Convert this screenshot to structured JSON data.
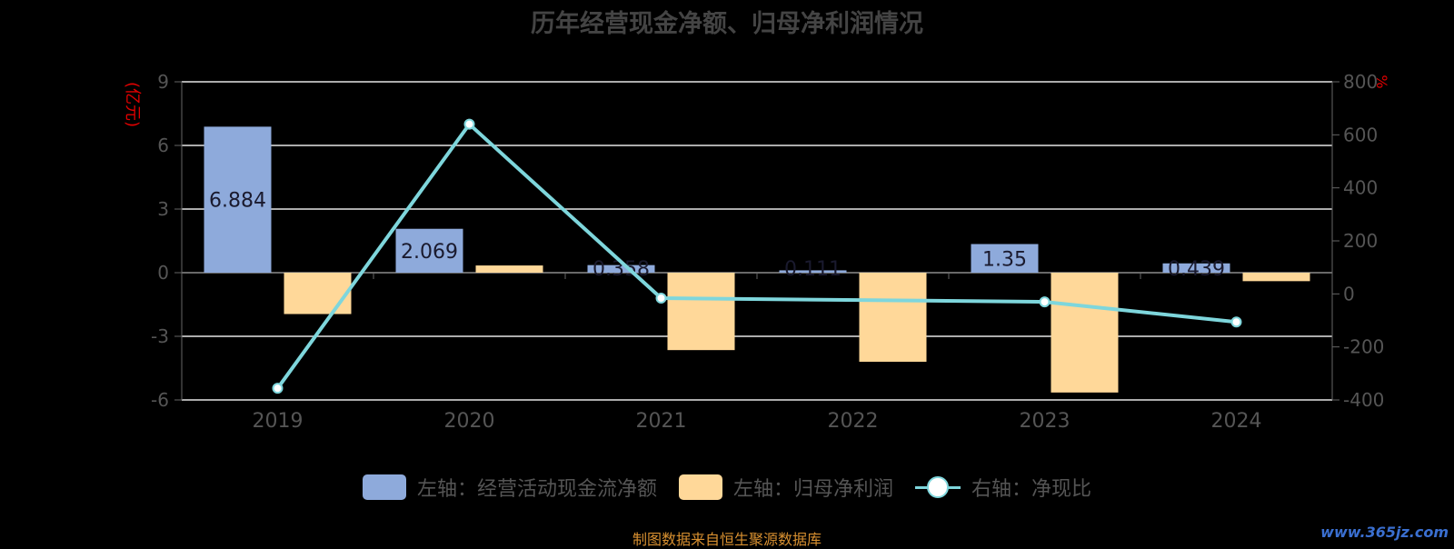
{
  "chart_data": {
    "type": "bar",
    "title": "历年经营现金净额、归母净利润情况",
    "categories": [
      "2019",
      "2020",
      "2021",
      "2022",
      "2023",
      "2024"
    ],
    "series": [
      {
        "name": "左轴：经营活动现金流净额",
        "axis": "left",
        "type": "bar",
        "color": "#8eaadb",
        "values": [
          6.884,
          2.069,
          0.358,
          0.111,
          1.35,
          0.439
        ],
        "labels": [
          "6.884",
          "2.069",
          "0.358",
          "0.111",
          "1.35",
          "0.439"
        ]
      },
      {
        "name": "左轴：归母净利润",
        "axis": "left",
        "type": "bar",
        "color": "#ffd899",
        "values": [
          -1.95,
          0.34,
          -3.65,
          -4.2,
          -5.65,
          -0.4
        ]
      },
      {
        "name": "右轴：净现比",
        "axis": "right",
        "type": "line",
        "color": "#7ed6dc",
        "values": [
          -356,
          640,
          -16,
          null,
          -30,
          -106
        ]
      }
    ],
    "left_axis": {
      "label": "(亿元)",
      "ylim": [
        -6,
        9
      ],
      "ticks": [
        9,
        6,
        3,
        0,
        -3,
        -6
      ]
    },
    "right_axis": {
      "label": "%",
      "ylim": [
        -400,
        800
      ],
      "ticks": [
        800,
        600,
        400,
        200,
        0,
        -200,
        -400
      ]
    },
    "grid": true,
    "legend_position": "bottom"
  },
  "footer": {
    "source": "制图数据来自恒生聚源数据库",
    "watermark": "www.365jz.com"
  }
}
